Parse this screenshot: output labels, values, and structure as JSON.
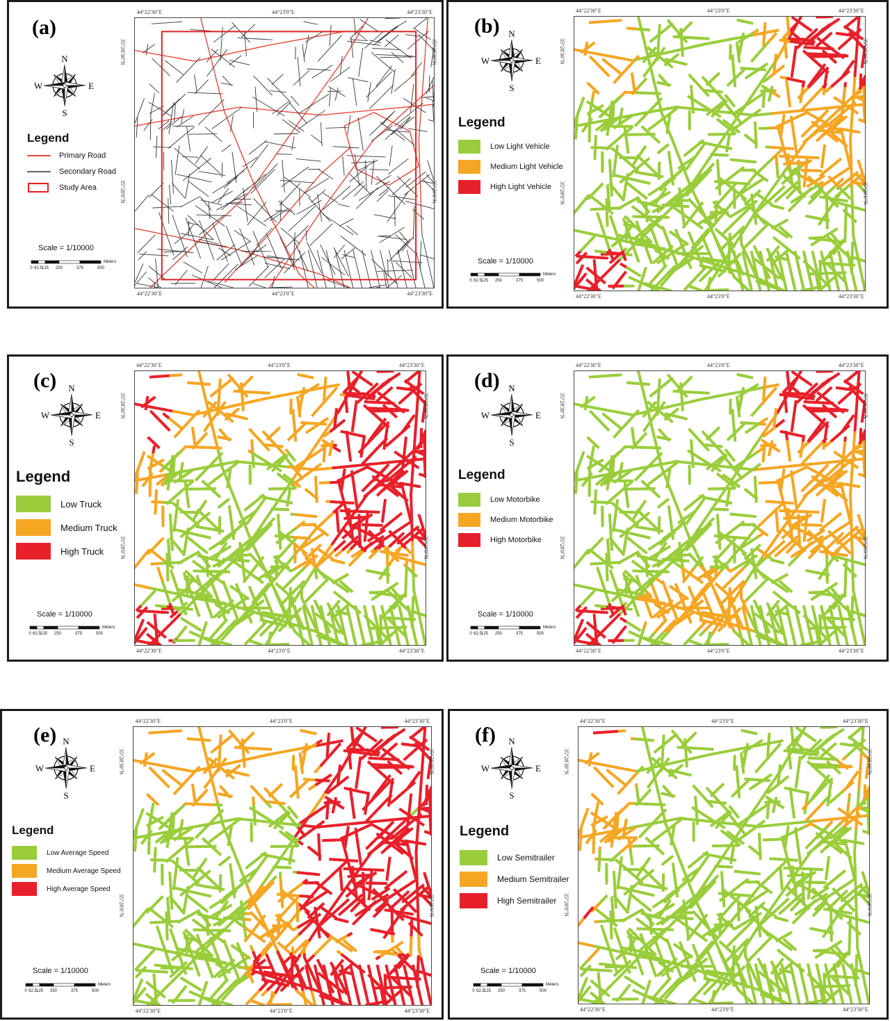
{
  "colors": {
    "low": "#9acd3c",
    "medium": "#f5a623",
    "high": "#e8202a",
    "primary_road": "#e8473b",
    "secondary_road": "#333333",
    "study_area": "#e01f1f"
  },
  "compass": {
    "n": "N",
    "s": "S",
    "e": "E",
    "w": "W"
  },
  "scale": {
    "text": "Scale = 1/10000",
    "ticks": [
      "0",
      "62.5",
      "125",
      "250",
      "375",
      "500"
    ],
    "unit": "Meters"
  },
  "coords": {
    "top": [
      "44°22'30\"E",
      "44°23'0\"E",
      "44°23'30\"E"
    ],
    "bottom": [
      "44°22'30\"E",
      "44°23'0\"E",
      "44°23'30\"E"
    ],
    "side": [
      "35°28'30\"N",
      "35°28'0\"N"
    ]
  },
  "panels": [
    {
      "label": "(a)",
      "legend_title": "Legend",
      "items": [
        {
          "label": "Primary Road",
          "symbol": "primary-road-line"
        },
        {
          "label": "Secondary Road",
          "symbol": "secondary-road-line"
        },
        {
          "label": "Study Area",
          "symbol": "study-area-box"
        }
      ]
    },
    {
      "label": "(b)",
      "legend_title": "Legend",
      "items": [
        {
          "label": "Low Light Vehicle",
          "level": "low"
        },
        {
          "label": "Medium Light Vehicle",
          "level": "medium"
        },
        {
          "label": "High Light Vehicle",
          "level": "high"
        }
      ]
    },
    {
      "label": "(c)",
      "legend_title": "Legend",
      "items": [
        {
          "label": "Low Truck",
          "level": "low"
        },
        {
          "label": "Medium Truck",
          "level": "medium"
        },
        {
          "label": "High Truck",
          "level": "high"
        }
      ]
    },
    {
      "label": "(d)",
      "legend_title": "Legend",
      "items": [
        {
          "label": "Low Motorbike",
          "level": "low"
        },
        {
          "label": "Medium Motorbike",
          "level": "medium"
        },
        {
          "label": "High Motorbike",
          "level": "high"
        }
      ]
    },
    {
      "label": "(e)",
      "legend_title": "Legend",
      "items": [
        {
          "label": "Low Average Speed",
          "level": "low"
        },
        {
          "label": "Medium Average Speed",
          "level": "medium"
        },
        {
          "label": "High Average Speed",
          "level": "high"
        }
      ]
    },
    {
      "label": "(f)",
      "legend_title": "Legend",
      "items": [
        {
          "label": "Low Semitrailer",
          "level": "low"
        },
        {
          "label": "Medium Semitrailer",
          "level": "medium"
        },
        {
          "label": "High Semitrailer",
          "level": "high"
        }
      ]
    }
  ]
}
